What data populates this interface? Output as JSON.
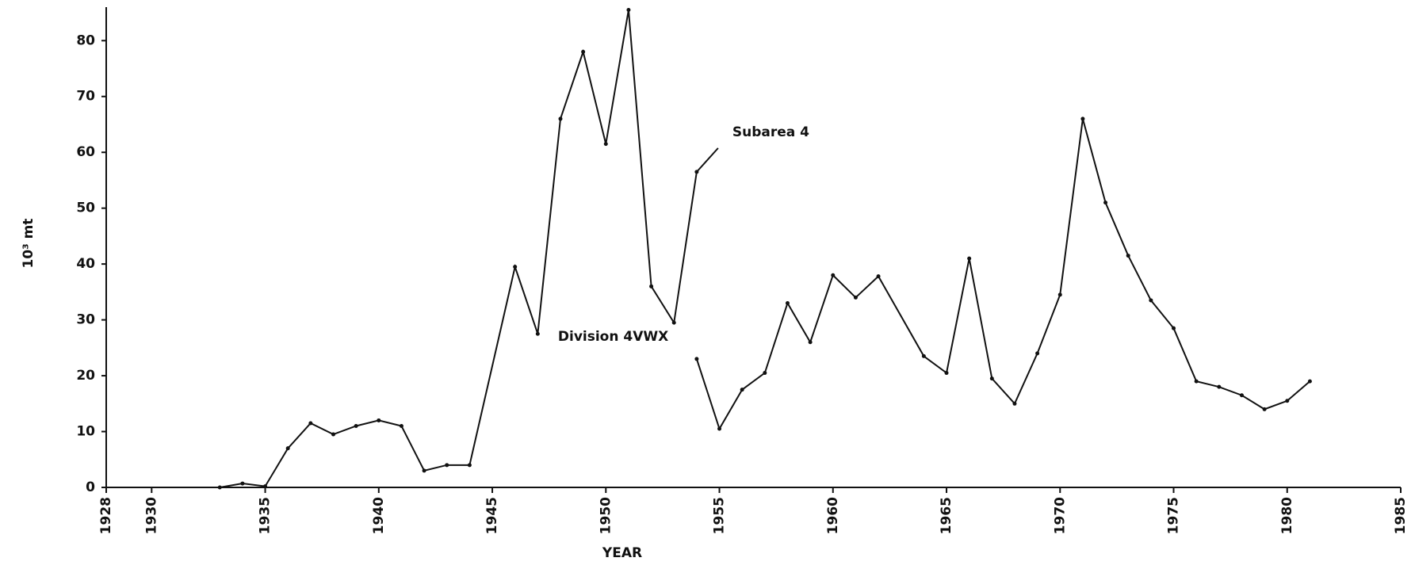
{
  "chart_data": {
    "type": "line",
    "x_label": "YEAR",
    "y_label": "10³ mt",
    "xlim": [
      1928,
      1985
    ],
    "xticks": [
      1928,
      1930,
      1935,
      1940,
      1945,
      1950,
      1955,
      1960,
      1965,
      1970,
      1975,
      1980,
      1985
    ],
    "ylim": [
      0,
      86
    ],
    "yticks": [
      0,
      10,
      20,
      30,
      40,
      50,
      60,
      70,
      80
    ],
    "grid": false,
    "series": [
      {
        "name": "Subarea 4",
        "color": "#111111",
        "x": [
          1933,
          1934,
          1935,
          1936,
          1937,
          1938,
          1939,
          1940,
          1941,
          1942,
          1943,
          1944,
          1946,
          1947,
          1948,
          1949,
          1950,
          1951,
          1952,
          1953,
          1954
        ],
        "values": [
          0,
          0.7,
          0.2,
          7,
          11.5,
          9.5,
          11,
          12,
          11,
          3,
          4,
          4,
          39.5,
          27.5,
          66,
          78,
          61.5,
          85.5,
          36,
          29.5,
          56.5
        ]
      },
      {
        "name": "Division 4VWX",
        "color": "#111111",
        "x": [
          1954,
          1955,
          1956,
          1957,
          1958,
          1959,
          1960,
          1961,
          1962,
          1964,
          1965,
          1966,
          1967,
          1968,
          1969,
          1970,
          1971,
          1972,
          1973,
          1974,
          1975,
          1976,
          1977,
          1978,
          1979,
          1980,
          1981
        ],
        "values": [
          23,
          10.5,
          17.5,
          20.5,
          33,
          26,
          38,
          34,
          37.8,
          23.5,
          20.5,
          41,
          19.5,
          15,
          24,
          34.5,
          66,
          51,
          41.5,
          33.5,
          28.5,
          19,
          18,
          16.5,
          14,
          15.5,
          19
        ]
      }
    ]
  }
}
